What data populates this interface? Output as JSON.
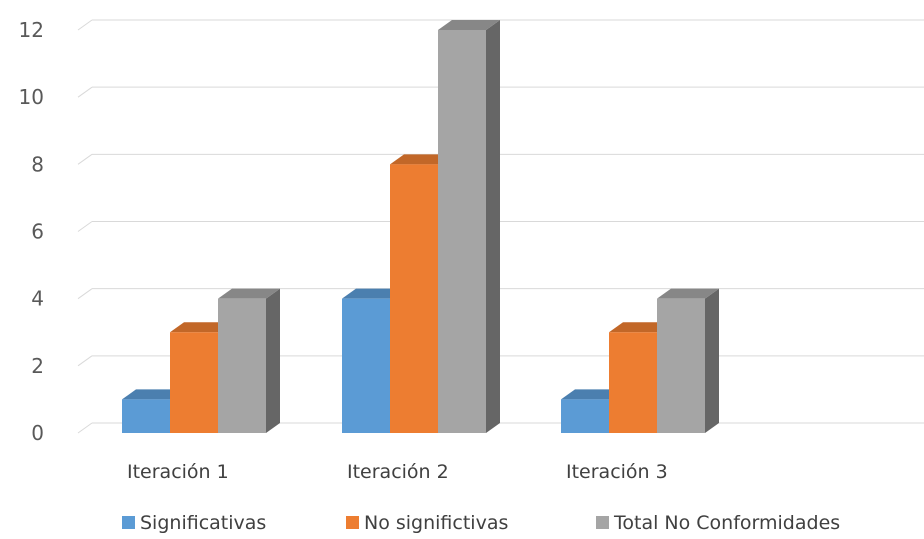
{
  "chart_data": {
    "type": "bar",
    "categories": [
      "Iteración 1",
      "Iteración 2",
      "Iteración 3"
    ],
    "series": [
      {
        "name": "Significativas",
        "values": [
          1,
          4,
          1
        ],
        "color": "#5B9BD5"
      },
      {
        "name": "No significtivas",
        "values": [
          3,
          8,
          3
        ],
        "color": "#ED7D31"
      },
      {
        "name": "Total No Conformidades",
        "values": [
          4,
          12,
          4
        ],
        "color": "#A5A5A5"
      }
    ],
    "yticks": [
      "0",
      "2",
      "4",
      "6",
      "8",
      "10",
      "12"
    ],
    "ylim": [
      0,
      12
    ],
    "grid": true,
    "legend_position": "bottom",
    "style": "3d-column"
  }
}
